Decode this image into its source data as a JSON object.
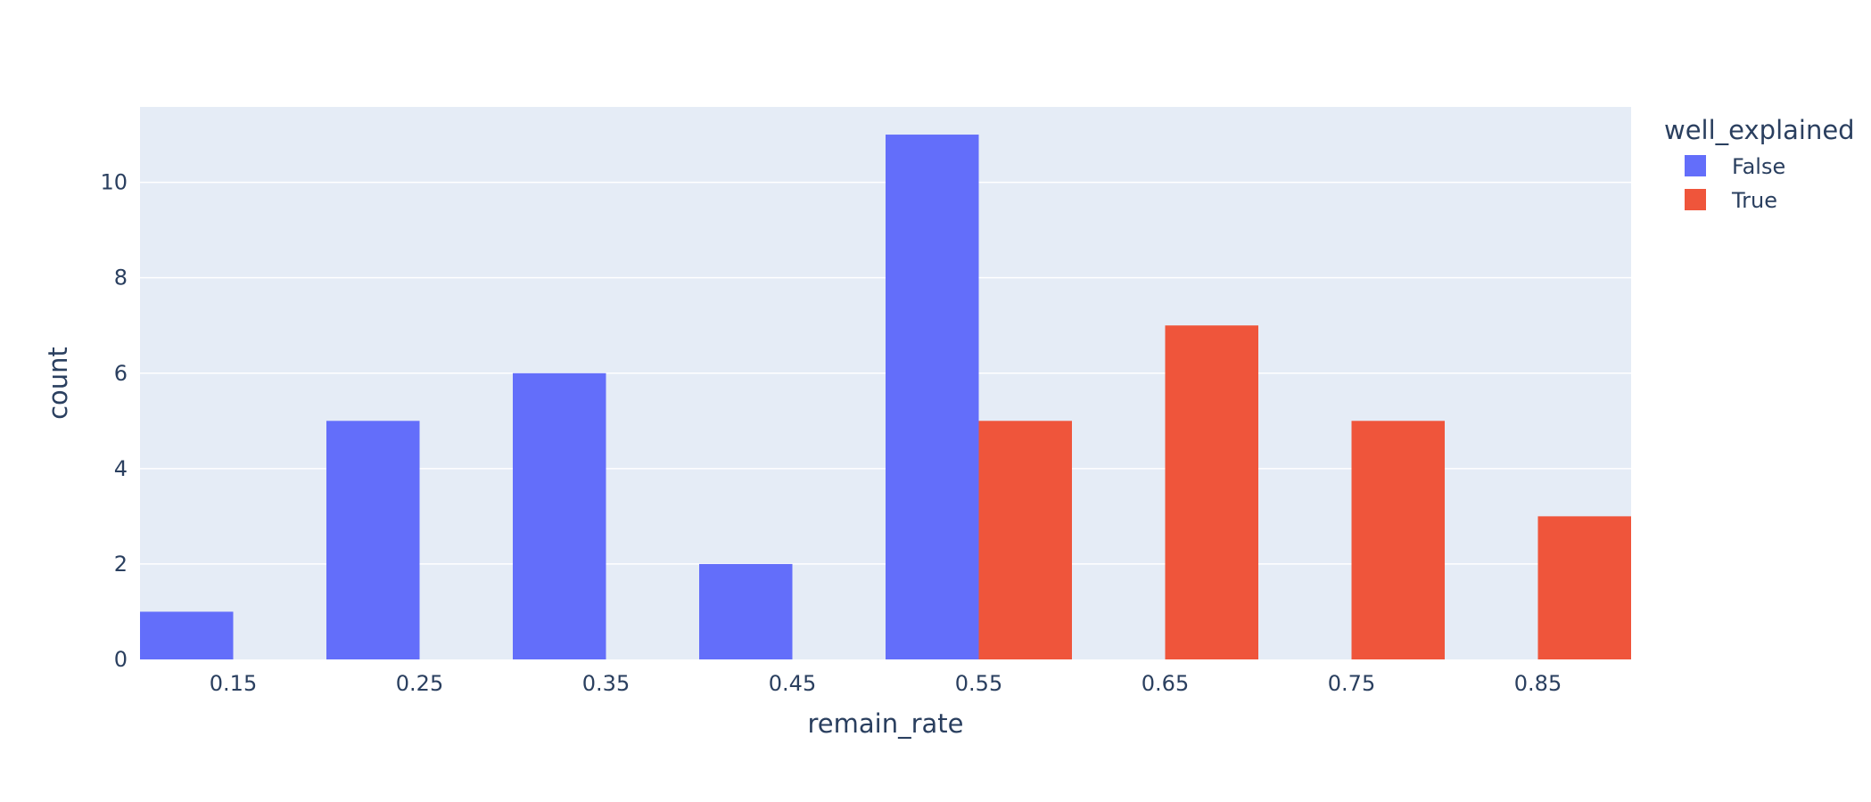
{
  "chart_data": {
    "type": "bar",
    "barmode": "group",
    "title": "",
    "xlabel": "remain_rate",
    "ylabel": "count",
    "x_ticks": [
      "0.15",
      "0.25",
      "0.35",
      "0.45",
      "0.55",
      "0.65",
      "0.75",
      "0.85"
    ],
    "categories": [
      0.15,
      0.25,
      0.35,
      0.45,
      0.55,
      0.65,
      0.75,
      0.85
    ],
    "y_ticks": [
      0,
      2,
      4,
      6,
      8,
      10
    ],
    "ylim": [
      0,
      11.58
    ],
    "xlim": [
      0.1,
      0.9
    ],
    "grid": true,
    "legend": {
      "title": "well_explained",
      "position": "top-right"
    },
    "series": [
      {
        "name": "False",
        "color": "#636efa",
        "values": [
          1,
          5,
          6,
          2,
          11,
          0,
          0,
          0
        ]
      },
      {
        "name": "True",
        "color": "#EF553B",
        "values": [
          0,
          0,
          0,
          0,
          5,
          7,
          5,
          3
        ]
      }
    ],
    "plot_bg": "#E5ECF6"
  }
}
